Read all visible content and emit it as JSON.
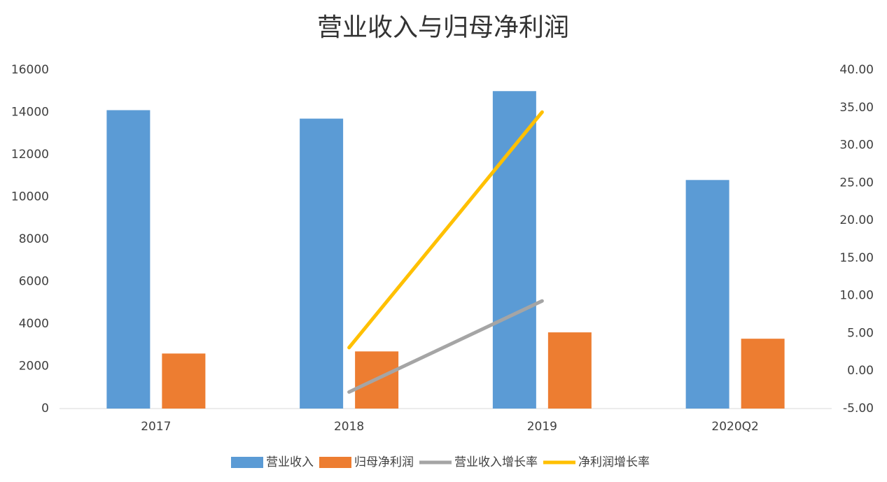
{
  "chart_data": {
    "type": "bar-line",
    "title": "营业收入与归母净利润",
    "categories": [
      "2017",
      "2018",
      "2019",
      "2020Q2"
    ],
    "series": [
      {
        "name": "营业收入",
        "type": "bar",
        "color": "#5b9bd5",
        "values": [
          14100,
          13700,
          15000,
          10800
        ]
      },
      {
        "name": "归母净利润",
        "type": "bar",
        "color": "#ed7d31",
        "values": [
          2600,
          2700,
          3600,
          3300
        ]
      },
      {
        "name": "营业收入增长率",
        "type": "line",
        "axis": "y2",
        "color": "#a5a5a5",
        "values": [
          null,
          -2.8,
          9.3,
          null
        ]
      },
      {
        "name": "净利润增长率",
        "type": "line",
        "axis": "y2",
        "color": "#ffc000",
        "values": [
          null,
          3.1,
          34.4,
          null
        ]
      }
    ],
    "ylim": [
      0,
      16000
    ],
    "yticks": [
      0,
      2000,
      4000,
      6000,
      8000,
      10000,
      12000,
      14000,
      16000
    ],
    "y2lim": [
      -5,
      40
    ],
    "y2ticks": [
      {
        "value": -5,
        "label": "-5.00"
      },
      {
        "value": 0,
        "label": "0.00"
      },
      {
        "value": 5,
        "label": "5.00"
      },
      {
        "value": 10,
        "label": "10.00"
      },
      {
        "value": 15,
        "label": "15.00"
      },
      {
        "value": 20,
        "label": "20.00"
      },
      {
        "value": 25,
        "label": "25.00"
      },
      {
        "value": 30,
        "label": "30.00"
      },
      {
        "value": 35,
        "label": "35.00"
      },
      {
        "value": 40,
        "label": "40.00"
      }
    ],
    "grid": false,
    "legend": "bottom"
  }
}
